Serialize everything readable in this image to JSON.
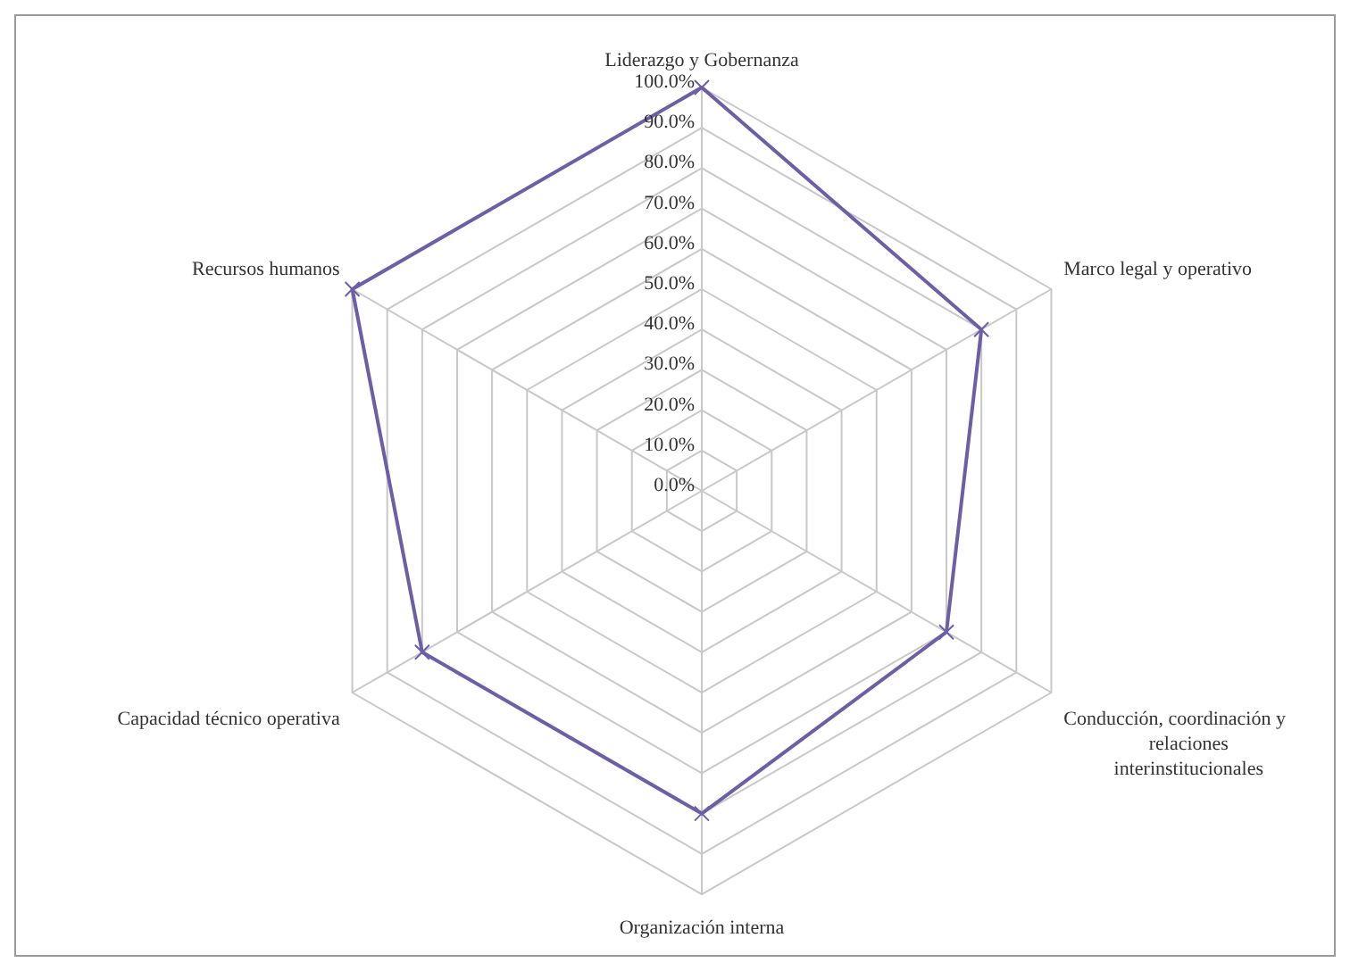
{
  "chart_data": {
    "type": "radar",
    "categories": [
      "Liderazgo y Gobernanza",
      "Marco legal y operativo",
      "Conducción, coordinación y relaciones interinstitucionales",
      "Organización interna",
      "Capacidad técnico operativa",
      "Recursos humanos"
    ],
    "series": [
      {
        "color": "#6e5ea6",
        "values": [
          100,
          80,
          70,
          80,
          80,
          100
        ]
      }
    ],
    "ylim": [
      0,
      100
    ],
    "yticks": [
      {
        "value": 0,
        "label": "0.0%"
      },
      {
        "value": 10,
        "label": "10.0%"
      },
      {
        "value": 20,
        "label": "20.0%"
      },
      {
        "value": 30,
        "label": "30.0%"
      },
      {
        "value": 40,
        "label": "40.0%"
      },
      {
        "value": 50,
        "label": "50.0%"
      },
      {
        "value": 60,
        "label": "60.0%"
      },
      {
        "value": 70,
        "label": "70.0%"
      },
      {
        "value": 80,
        "label": "80.0%"
      },
      {
        "value": 90,
        "label": "90.0%"
      },
      {
        "value": 100,
        "label": "100.0%"
      }
    ],
    "grid": true,
    "legend": false,
    "marker": "cross"
  }
}
